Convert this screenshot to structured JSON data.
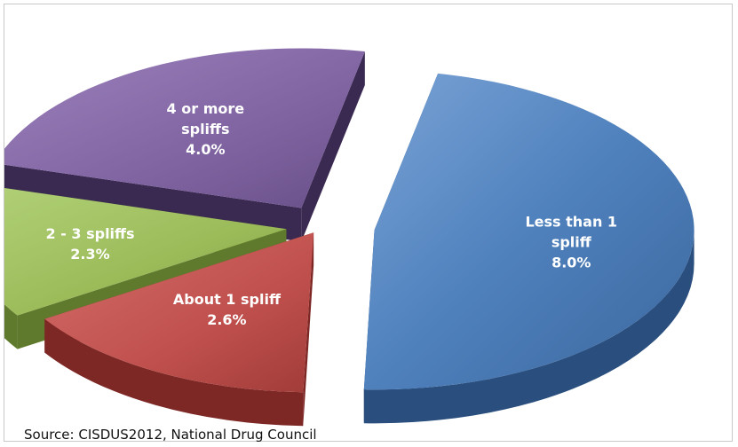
{
  "chart_data": {
    "type": "pie",
    "style": "3d-exploded",
    "slices": [
      {
        "label": [
          "Less than 1",
          "spliff",
          "8.0%"
        ],
        "name": "Less than 1 spliff",
        "value": 8.0,
        "color": "#4f81bd",
        "side_color": "#2a4f7e"
      },
      {
        "label": [
          "About 1 spliff",
          "2.6%"
        ],
        "name": "About 1 spliff",
        "value": 2.6,
        "color": "#c0504d",
        "side_color": "#7e2826"
      },
      {
        "label": [
          "2 - 3 spliffs",
          "2.3%"
        ],
        "name": "2 - 3 spliffs",
        "value": 2.3,
        "color": "#9bbb59",
        "side_color": "#5f7a2c"
      },
      {
        "label": [
          "4 or more",
          "spliffs",
          "4.0%"
        ],
        "name": "4 or more spliffs",
        "value": 4.0,
        "color": "#8064a2",
        "side_color": "#3a2a52"
      }
    ]
  },
  "footer": {
    "source": "Source: CISDUS2012,  National Drug Council"
  }
}
